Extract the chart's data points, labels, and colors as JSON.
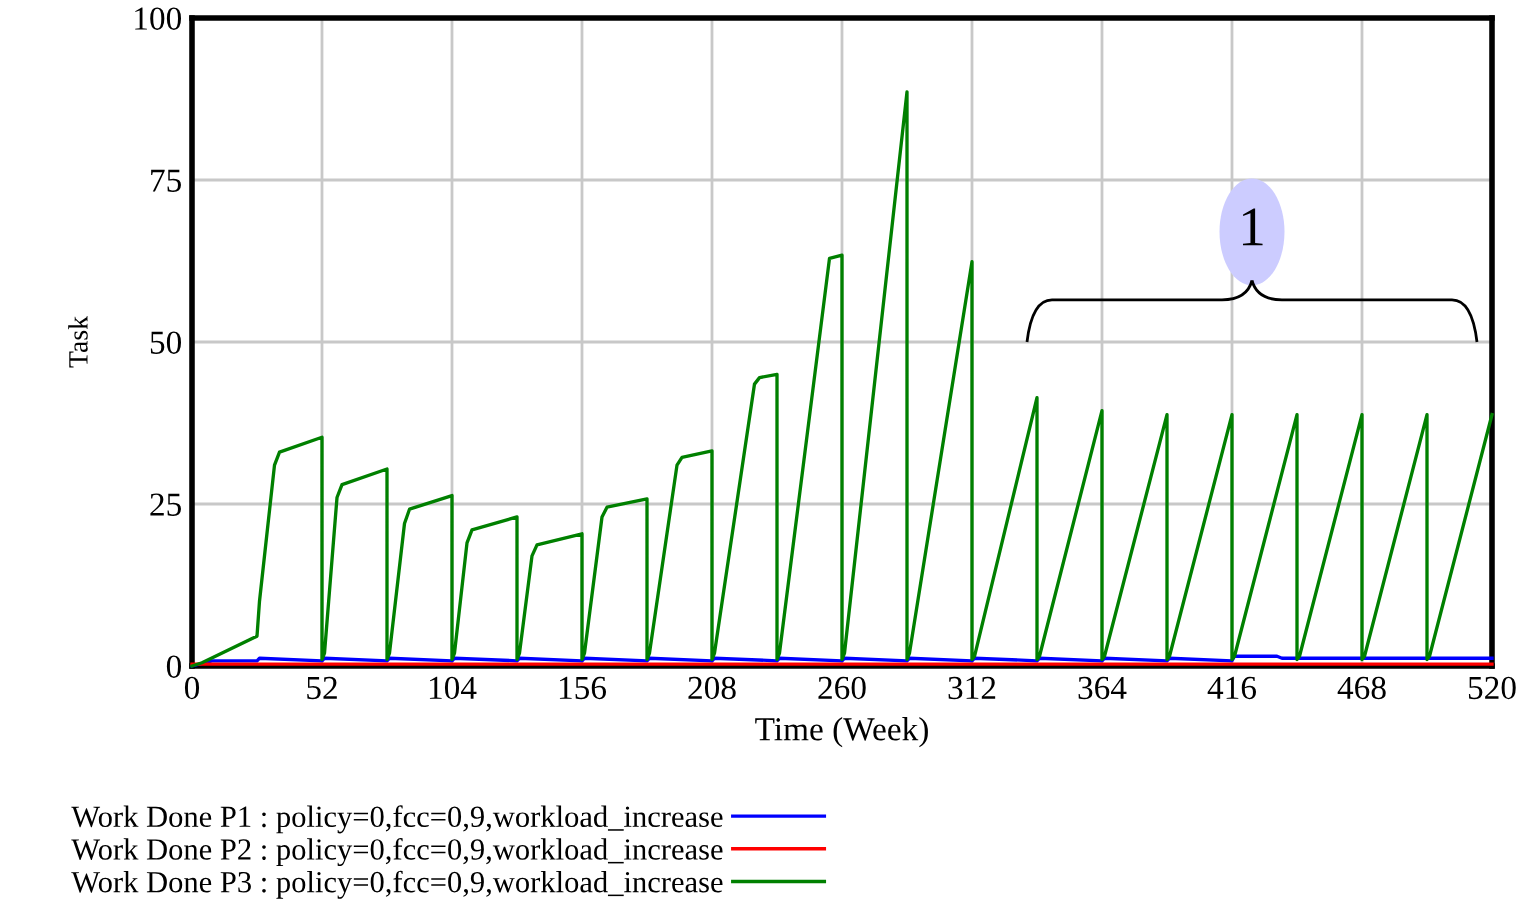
{
  "chart_data": {
    "type": "line",
    "xlabel": "Time (Week)",
    "ylabel": "Task",
    "xlim": [
      0,
      520
    ],
    "ylim": [
      0,
      100
    ],
    "xticks": [
      0,
      52,
      104,
      156,
      208,
      260,
      312,
      364,
      416,
      468,
      520
    ],
    "yticks": [
      0,
      25,
      50,
      75,
      100
    ],
    "grid": true,
    "legend": "bottom",
    "marker": "none",
    "line_style": "solid",
    "annotations": [
      "1"
    ],
    "series": [
      {
        "name": "Work Done P1 : policy=0,fcc=0,9,workload_increase",
        "color": "#0000ff",
        "x": [
          0,
          8,
          26,
          27,
          52,
          53,
          78,
          79,
          104,
          105,
          130,
          131,
          156,
          157,
          182,
          183,
          208,
          209,
          234,
          235,
          260,
          261,
          286,
          287,
          312,
          313,
          338,
          339,
          364,
          365,
          390,
          391,
          416,
          417,
          434,
          436,
          520
        ],
        "values": [
          0,
          0.8,
          0.8,
          1.2,
          0.8,
          1.2,
          0.8,
          1.2,
          0.8,
          1.2,
          0.8,
          1.2,
          0.8,
          1.2,
          0.8,
          1.2,
          0.8,
          1.2,
          0.8,
          1.2,
          0.8,
          1.2,
          0.8,
          1.2,
          0.8,
          1.2,
          0.8,
          1.2,
          0.8,
          1.2,
          0.8,
          1.2,
          0.8,
          1.5,
          1.5,
          1.2,
          1.2
        ]
      },
      {
        "name": "Work Done P2 : policy=0,fcc=0,9,workload_increase",
        "color": "#ff0000",
        "x": [
          0,
          520
        ],
        "values": [
          0.3,
          0.3
        ]
      },
      {
        "name": "Work Done P3 : policy=0,fcc=0,9,workload_increase",
        "color": "#008000",
        "x": [
          0,
          4,
          26,
          27,
          33,
          35,
          52,
          52,
          53,
          58,
          60,
          78,
          78,
          79,
          85,
          87,
          104,
          104,
          105,
          110,
          112,
          130,
          130,
          131,
          136,
          138,
          156,
          156,
          157,
          164,
          166,
          182,
          182,
          183,
          194,
          196,
          208,
          208,
          209,
          225,
          227,
          234,
          234,
          235,
          255,
          260,
          260,
          261,
          286,
          286,
          287,
          312,
          312,
          313,
          338,
          338,
          339,
          364,
          364,
          365,
          390,
          390,
          391,
          416,
          416,
          417,
          442,
          442,
          443,
          468,
          468,
          469,
          494,
          494,
          495,
          520
        ],
        "values": [
          0,
          0.5,
          4.6,
          10,
          31,
          33,
          35.3,
          1,
          2,
          26,
          28,
          30.4,
          1,
          2,
          22,
          24.2,
          26.3,
          1,
          2,
          19,
          21,
          23,
          1,
          2,
          17,
          18.7,
          20.4,
          1,
          2,
          23,
          24.5,
          25.8,
          1,
          2,
          31,
          32.2,
          33.2,
          1,
          2,
          43.5,
          44.5,
          45,
          1,
          2,
          62.9,
          63.4,
          1,
          2,
          88.6,
          1,
          2,
          62.4,
          1,
          1.5,
          41.4,
          1,
          1.5,
          39.4,
          1,
          1.5,
          38.8,
          1,
          1.5,
          38.8,
          1,
          1.5,
          38.8,
          1,
          1.5,
          38.8,
          1,
          1.5,
          38.8,
          1,
          1.5,
          38.8
        ]
      }
    ]
  }
}
